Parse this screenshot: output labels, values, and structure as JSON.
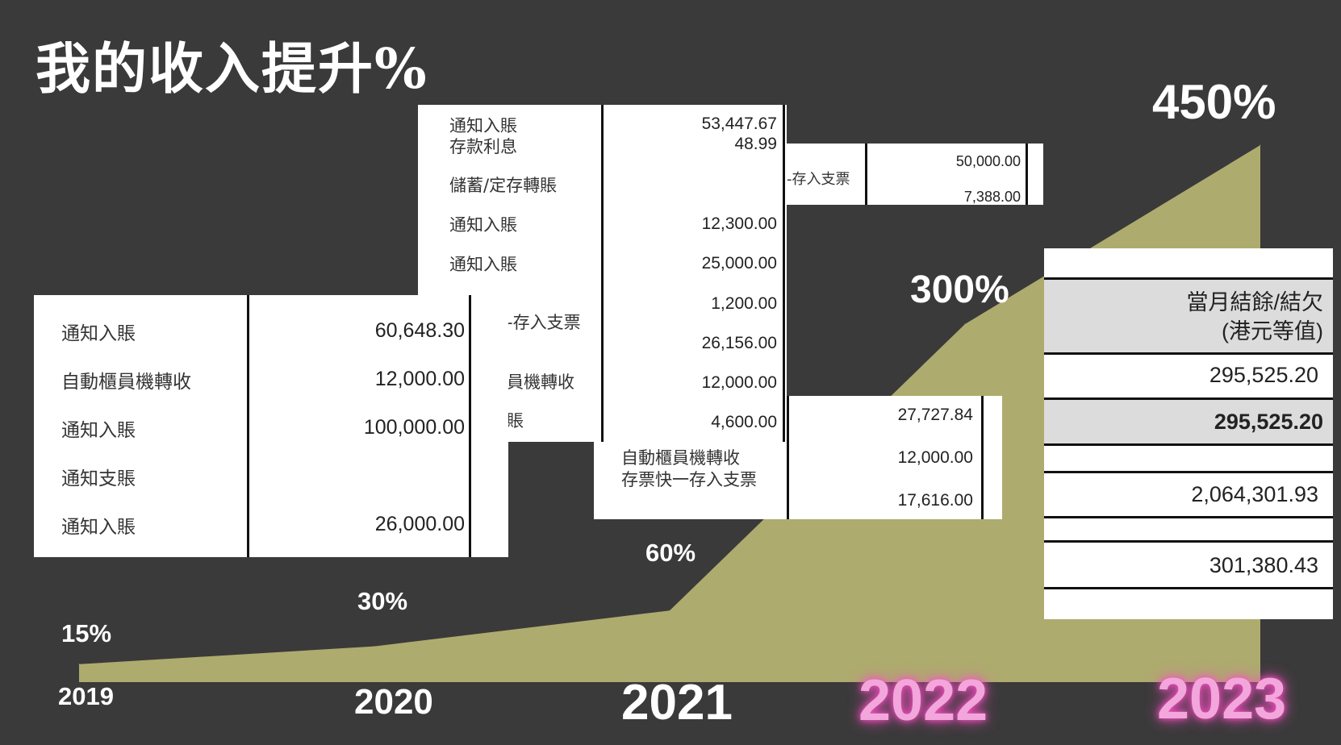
{
  "title": "我的收入提升%",
  "colors": {
    "background": "#3a3a3a",
    "area": "#aeab6e",
    "highlight_year": "#f3a6dc"
  },
  "chart_data": {
    "type": "area",
    "categories": [
      "2019",
      "2020",
      "2021",
      "2022",
      "2023"
    ],
    "values": [
      15,
      30,
      60,
      300,
      450
    ],
    "value_labels": [
      "15%",
      "30%",
      "60%",
      "300%",
      "450%"
    ],
    "title": "我的收入提升%",
    "xlabel": "",
    "ylabel": "",
    "ylim": [
      0,
      450
    ],
    "grid": false,
    "highlighted_categories": [
      "2022",
      "2023"
    ]
  },
  "statement_a": {
    "rows": [
      {
        "label": "通知入賬",
        "amount": "60,648.30"
      },
      {
        "label": "自動櫃員機轉收",
        "amount": "12,000.00"
      },
      {
        "label": "通知入賬",
        "amount": "100,000.00"
      },
      {
        "label": "通知支賬",
        "amount": ""
      },
      {
        "label": "通知入賬",
        "amount": "26,000.00"
      }
    ]
  },
  "statement_b": {
    "labels": [
      "通知入賬",
      "存款利息",
      "儲蓄/定存轉賬",
      "通知入賬",
      "通知入賬",
      "-存入支票",
      "員機轉收",
      "賬"
    ],
    "amounts": [
      "53,447.67",
      "48.99",
      "12,300.00",
      "25,000.00",
      "1,200.00",
      "26,156.00",
      "12,000.00",
      "4,600.00"
    ]
  },
  "statement_c": {
    "label": "-存入支票",
    "amounts": [
      "50,000.00",
      "7,388.00"
    ]
  },
  "statement_d": {
    "labels": [
      "自動櫃員機轉收",
      "存票快一存入支票"
    ],
    "amounts": [
      "27,727.84",
      "12,000.00",
      "17,616.00"
    ]
  },
  "statement_e": {
    "header_line1": "當月結餘/結欠",
    "header_line2": "(港元等值)",
    "values": [
      "295,525.20",
      "295,525.20",
      "2,064,301.93",
      "301,380.43"
    ]
  }
}
